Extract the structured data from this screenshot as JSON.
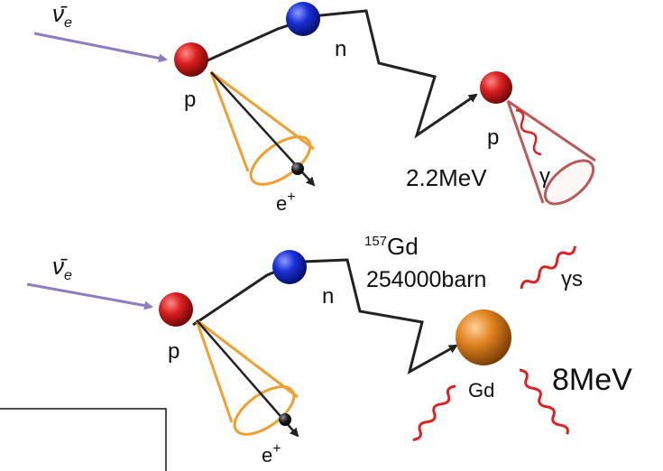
{
  "colors": {
    "neutrino_arrow": "#8e7cc3",
    "proton": "#cc1f1f",
    "neutron": "#1a2fd6",
    "gadolinium": "#d97e1f",
    "positron": "#111111",
    "cone_positron": "#f0a030",
    "cone_gamma": "#b85a5a",
    "gamma_wave": "#e02020",
    "track": "#222222"
  },
  "top_panel": {
    "neutrino_label": "ν̄",
    "neutrino_subscript": "e",
    "proton_label": "p",
    "neutron_label": "n",
    "positron_label": "e",
    "positron_sup": "+",
    "capture_proton_label": "p",
    "energy_label": "2.2MeV",
    "gamma_label": "γ"
  },
  "bottom_panel": {
    "neutrino_label": "ν̄",
    "neutrino_subscript": "e",
    "proton_label": "p",
    "neutron_label": "n",
    "positron_label": "e",
    "positron_sup": "+",
    "isotope_mass": "157",
    "isotope_symbol": "Gd",
    "cross_section": "254000barn",
    "gammas_label": "γs",
    "gd_label": "Gd",
    "energy_label": "8MeV"
  }
}
